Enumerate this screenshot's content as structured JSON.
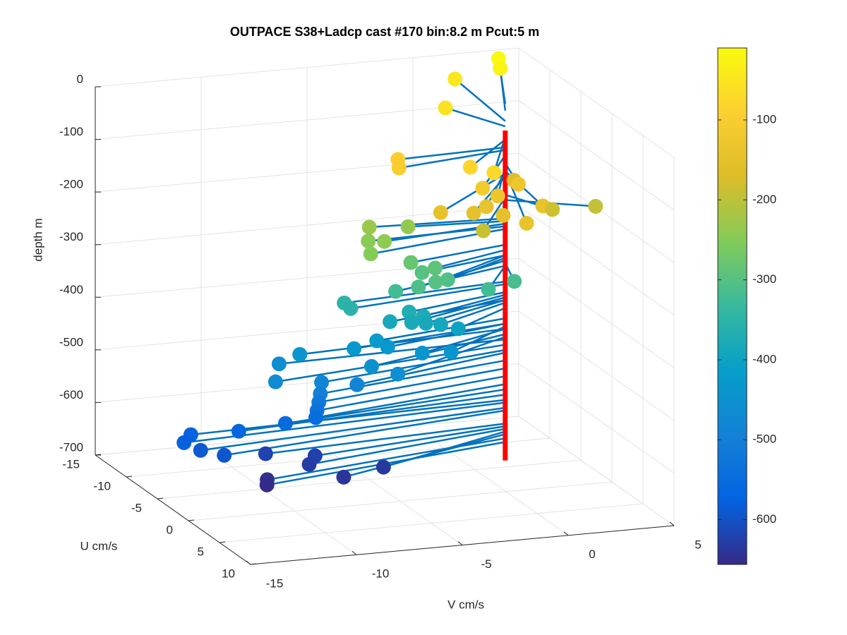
{
  "chart_data": {
    "type": "scatter3",
    "title": "OUTPACE S38+Ladcp cast #170 bin:8.2 m  Pcut:5 m",
    "xlabel": "V cm/s",
    "ylabel": "U cm/s",
    "zlabel": "depth m",
    "xlim": [
      -15,
      5
    ],
    "xticks": [
      -15,
      -10,
      -5,
      0,
      5
    ],
    "ylim": [
      -15,
      10
    ],
    "yticks": [
      -15,
      -10,
      -5,
      0,
      5,
      10
    ],
    "zlim": [
      -700,
      0
    ],
    "zticks": [
      -700,
      -600,
      -500,
      -400,
      -300,
      -200,
      -100,
      0
    ],
    "grid": true,
    "colormap": "parula",
    "clim": [
      -656,
      -10
    ],
    "colorbar_ticks": [
      -600,
      -500,
      -400,
      -300,
      -200,
      -100
    ],
    "stem_color": "#0072bd",
    "line_color": "#ff0000",
    "line_x": 1.5,
    "line_y": -5.25,
    "line_z": [
      -63,
      -690
    ],
    "x": [
      3.9,
      3.8,
      1.9,
      0.1,
      -3.7,
      -4.0,
      -1.6,
      -1.1,
      2.1,
      0.8,
      -1.4,
      -0.6,
      -1.4,
      -2.0,
      -3.5,
      1.0,
      2.6,
      4.9,
      -0.9,
      -0.7,
      -1.4,
      -4.7,
      -2.9,
      -5.1,
      -4.6,
      -5.6,
      -3.5,
      -3.0,
      -2.5,
      -2.2,
      -3.0,
      -3.7,
      -4.6,
      -0.6,
      0.8,
      -6.5,
      -6.4,
      -3.7,
      -3.2,
      -4.6,
      -3.9,
      -3.2,
      -2.5,
      -1.7,
      -8.6,
      -6.3,
      -5.2,
      -4.8,
      -3.4,
      -2.3,
      -6.0,
      -5.2,
      -9.4,
      -10.3,
      -8.1,
      -6.6,
      -8.2,
      -8.3,
      -8.4,
      -8.4,
      -9.7,
      -11.8,
      -13.7,
      -14.3,
      -13.75,
      -12.9,
      -10.3,
      -8.2,
      -8.8,
      -5.7,
      -7.8,
      -10.9,
      -11.0
    ],
    "y": [
      -14.5,
      -13.9,
      -14.7,
      -10.1,
      -4.8,
      -3.6,
      -0.3,
      1.8,
      -5.9,
      -0.75,
      1.0,
      0.7,
      1.6,
      1.6,
      1.4,
      2.5,
      -1.4,
      -2.3,
      2.6,
      5.7,
      1.1,
      -6.0,
      -5.9,
      -4.8,
      -3.9,
      -2.7,
      -3.4,
      -3.3,
      -2.9,
      -1.9,
      -1.1,
      -1.5,
      -2.1,
      -0.8,
      -1.4,
      -3.9,
      -3.2,
      -3.0,
      -2.4,
      -3.0,
      -1.9,
      -2.0,
      -2.0,
      -1.9,
      -3.9,
      -3.0,
      -3.1,
      -2.7,
      -1.9,
      -1.0,
      -1.2,
      0.3,
      -4.5,
      -2.0,
      -2.1,
      -1.5,
      -1.95,
      -1.85,
      -1.8,
      -2.0,
      -2.45,
      -2.8,
      -4.05,
      -3.1,
      -2.3,
      -1.4,
      -3.6,
      -2.8,
      -1.7,
      -0.3,
      0.45,
      -1.3,
      -1.0
    ],
    "z": [
      -12,
      -25,
      -45,
      -55,
      -95,
      -100,
      -80,
      -75,
      -165,
      -125,
      -110,
      -130,
      -140,
      -150,
      -145,
      -140,
      -185,
      -195,
      -150,
      -140,
      -190,
      -230,
      -235,
      -245,
      -240,
      -250,
      -280,
      -300,
      -290,
      -305,
      -300,
      -310,
      -320,
      -320,
      -315,
      -350,
      -355,
      -370,
      -375,
      -385,
      -380,
      -385,
      -390,
      -400,
      -440,
      -430,
      -420,
      -430,
      -440,
      -435,
      -450,
      -455,
      -460,
      -470,
      -480,
      -485,
      -500,
      -515,
      -530,
      -545,
      -555,
      -565,
      -575,
      -580,
      -590,
      -595,
      -620,
      -625,
      -630,
      -635,
      -640,
      -648,
      -655
    ]
  }
}
